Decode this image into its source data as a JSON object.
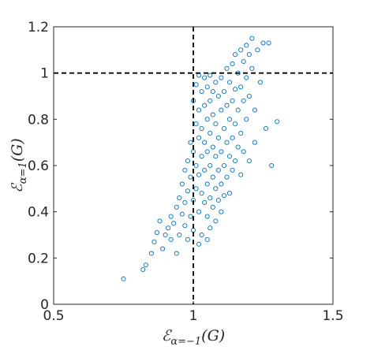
{
  "chart_data": {
    "type": "scatter",
    "x_label": {
      "symbol": "ℰ",
      "subscript": "α=−1",
      "argument": "(G)"
    },
    "y_label": {
      "symbol": "ℰ",
      "subscript": "α=1",
      "argument": "(G)"
    },
    "xlim": [
      0.5,
      1.5
    ],
    "xticks": [
      0.5,
      1,
      1.5
    ],
    "ylim": [
      0,
      1.2
    ],
    "yticks": [
      0,
      0.2,
      0.4,
      0.6,
      0.8,
      1,
      1.2
    ],
    "color": "#0072bd",
    "marker": "open-circle",
    "reference_lines": [
      {
        "axis": "x",
        "value": 1
      },
      {
        "axis": "y",
        "value": 1
      }
    ],
    "x": [
      0.75,
      0.82,
      0.83,
      0.85,
      0.86,
      0.87,
      0.88,
      0.89,
      0.9,
      0.91,
      0.92,
      0.92,
      0.93,
      0.94,
      0.94,
      0.95,
      0.95,
      0.96,
      0.96,
      0.97,
      0.97,
      0.97,
      0.98,
      0.98,
      0.98,
      0.99,
      0.99,
      0.99,
      1,
      1,
      1,
      1,
      1.01,
      1.01,
      1.01,
      1.01,
      1.02,
      1.02,
      1.02,
      1.02,
      1.02,
      1.03,
      1.03,
      1.03,
      1.03,
      1.03,
      1.04,
      1.04,
      1.04,
      1.04,
      1.04,
      1.05,
      1.05,
      1.05,
      1.05,
      1.05,
      1.06,
      1.06,
      1.06,
      1.06,
      1.06,
      1.06,
      1.07,
      1.07,
      1.07,
      1.07,
      1.07,
      1.08,
      1.08,
      1.08,
      1.08,
      1.08,
      1.09,
      1.09,
      1.09,
      1.09,
      1.1,
      1.1,
      1.1,
      1.1,
      1.1,
      1.11,
      1.11,
      1.11,
      1.11,
      1.12,
      1.12,
      1.12,
      1.12,
      1.13,
      1.13,
      1.13,
      1.13,
      1.14,
      1.14,
      1.14,
      1.14,
      1.15,
      1.15,
      1.15,
      1.15,
      1.16,
      1.16,
      1.16,
      1.17,
      1.17,
      1.17,
      1.17,
      1.18,
      1.18,
      1.18,
      1.19,
      1.19,
      1.19,
      1.2,
      1.2,
      1.2,
      1.21,
      1.21,
      1.22,
      1.22,
      1.23,
      1.24,
      1.25,
      1.26,
      1.27,
      1.3,
      1.28,
      1.02,
      1.05
    ],
    "y": [
      0.11,
      0.15,
      0.17,
      0.22,
      0.27,
      0.31,
      0.36,
      0.24,
      0.3,
      0.33,
      0.28,
      0.38,
      0.35,
      0.42,
      0.22,
      0.3,
      0.46,
      0.39,
      0.52,
      0.34,
      0.58,
      0.44,
      0.62,
      0.49,
      0.28,
      0.7,
      0.55,
      0.38,
      0.88,
      0.66,
      0.45,
      0.32,
      0.95,
      0.78,
      0.6,
      0.5,
      0.99,
      0.84,
      0.72,
      0.56,
      0.4,
      0.92,
      0.76,
      0.64,
      0.48,
      0.3,
      0.98,
      0.86,
      0.7,
      0.58,
      0.44,
      0.94,
      0.8,
      0.66,
      0.52,
      0.38,
      0.99,
      0.88,
      0.74,
      0.6,
      0.46,
      0.33,
      0.92,
      0.82,
      0.68,
      0.55,
      0.42,
      0.96,
      0.78,
      0.64,
      0.5,
      0.36,
      0.9,
      0.72,
      0.58,
      0.45,
      0.98,
      0.84,
      0.66,
      0.52,
      0.4,
      0.92,
      0.76,
      0.6,
      0.47,
      1.02,
      0.86,
      0.7,
      0.55,
      0.96,
      0.8,
      0.64,
      0.48,
      1.04,
      0.88,
      0.72,
      0.58,
      1.08,
      0.93,
      0.78,
      0.62,
      1,
      0.84,
      0.68,
      1.1,
      0.94,
      0.74,
      0.56,
      1.05,
      0.88,
      0.66,
      1.12,
      0.98,
      0.8,
      1.08,
      0.9,
      0.62,
      1.15,
      1.02,
      0.84,
      0.7,
      1.1,
      0.96,
      1.13,
      0.76,
      1.13,
      0.79,
      0.6,
      0.26,
      0.28
    ]
  }
}
